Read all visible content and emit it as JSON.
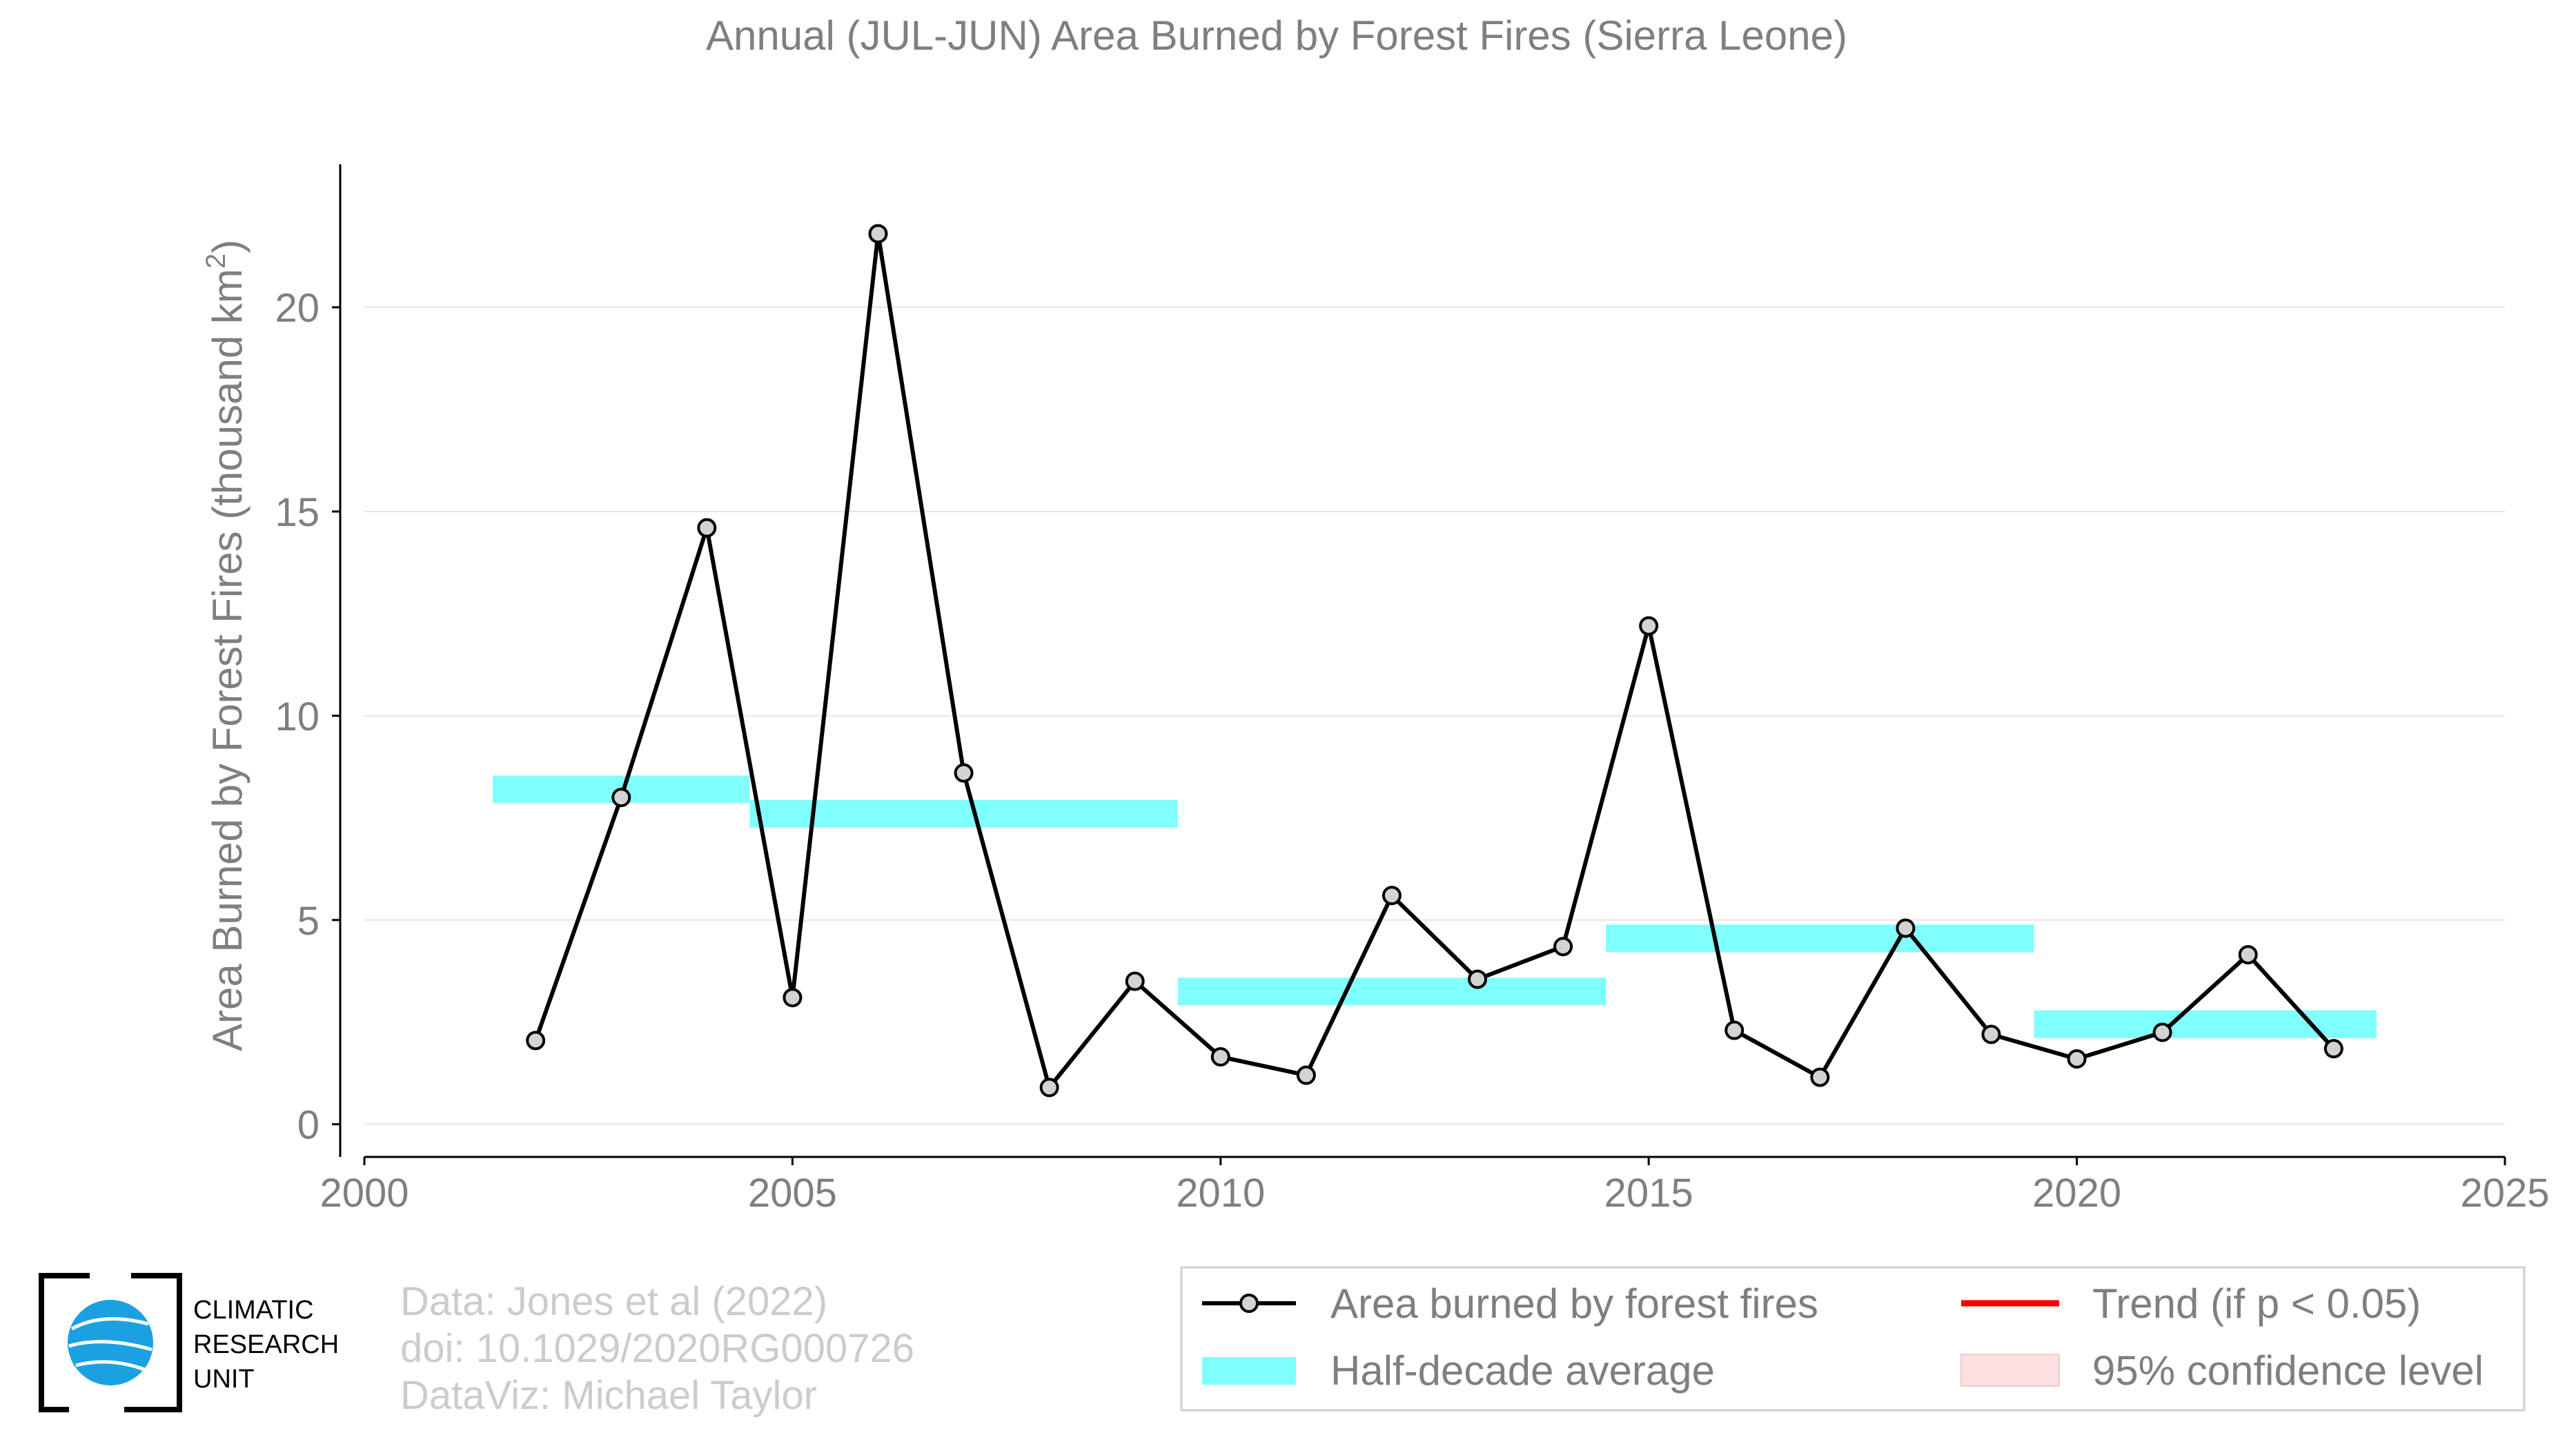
{
  "chart_data": {
    "type": "line",
    "title": "Annual (JUL-JUN) Area Burned by Forest Fires (Sierra Leone)",
    "xlabel": "",
    "ylabel_main": "Area Burned by Forest Fires (thousand km",
    "ylabel_sup": "2",
    "ylabel_close": ")",
    "xlim": [
      2000,
      2025
    ],
    "ylim": [
      -0.8,
      23.5
    ],
    "xticks": [
      2000,
      2005,
      2010,
      2015,
      2020,
      2025
    ],
    "yticks": [
      0,
      5,
      10,
      15,
      20
    ],
    "grid": "horizontal",
    "legend_position": "bottom-right",
    "series": [
      {
        "name": "Area burned by forest fires",
        "color": "#000000",
        "marker_fill": "#d3d3d3",
        "x": [
          2002,
          2003,
          2004,
          2005,
          2006,
          2007,
          2008,
          2009,
          2010,
          2011,
          2012,
          2013,
          2014,
          2015,
          2016,
          2017,
          2018,
          2019,
          2020,
          2021,
          2022,
          2023
        ],
        "y": [
          2.05,
          8.0,
          14.6,
          3.1,
          21.8,
          8.6,
          0.9,
          3.5,
          1.65,
          1.2,
          5.6,
          3.55,
          4.35,
          12.2,
          2.3,
          1.15,
          4.8,
          2.2,
          1.6,
          2.25,
          4.15,
          1.85
        ]
      }
    ],
    "half_decade_average": {
      "name": "Half-decade average",
      "color": "#80ffff",
      "segments": [
        {
          "x_start": 2001.5,
          "x_end": 2004.5,
          "y": 8.2
        },
        {
          "x_start": 2004.5,
          "x_end": 2009.5,
          "y": 7.6
        },
        {
          "x_start": 2009.5,
          "x_end": 2014.5,
          "y": 3.25
        },
        {
          "x_start": 2014.5,
          "x_end": 2019.5,
          "y": 4.55
        },
        {
          "x_start": 2019.5,
          "x_end": 2023.5,
          "y": 2.45
        }
      ]
    },
    "legend": [
      {
        "label": "Area burned by forest fires",
        "style": "line-marker",
        "color": "#000000"
      },
      {
        "label": "Trend (if p < 0.05)",
        "style": "line",
        "color": "#ff0000"
      },
      {
        "label": "Half-decade average",
        "style": "band",
        "color": "#80ffff"
      },
      {
        "label": "95% confidence level",
        "style": "patch",
        "color": "#fde0e0"
      }
    ]
  },
  "credits": {
    "line1": "Data: Jones et al (2022)",
    "line2": "doi: 10.1029/2020RG000726",
    "line3": "DataViz: Michael Taylor"
  },
  "logo": {
    "line1": "CLIMATIC",
    "line2": "RESEARCH",
    "line3": "UNIT"
  }
}
